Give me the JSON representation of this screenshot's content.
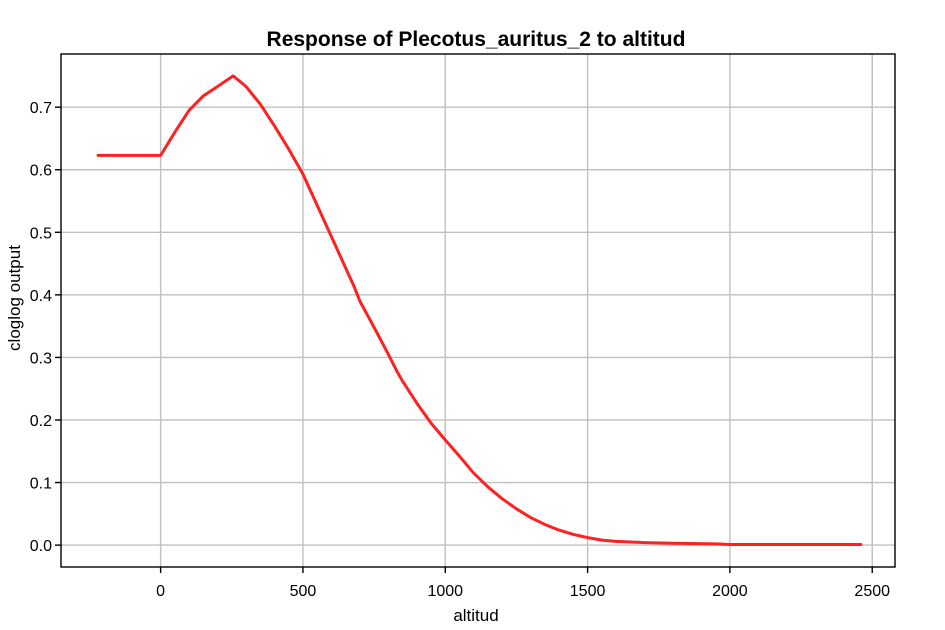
{
  "chart_data": {
    "type": "line",
    "title": "Response of Plecotus_auritus_2 to altitud",
    "xlabel": "altitud",
    "ylabel": "cloglog output",
    "xlim": [
      -350,
      2580
    ],
    "ylim": [
      -0.035,
      0.785
    ],
    "xticks": [
      0,
      500,
      1000,
      1500,
      2000,
      2500
    ],
    "yticks": [
      0.0,
      0.1,
      0.2,
      0.3,
      0.4,
      0.5,
      0.6,
      0.7
    ],
    "xtick_labels": [
      "0",
      "500",
      "1000",
      "1500",
      "2000",
      "2500"
    ],
    "ytick_labels": [
      "0.0",
      "0.1",
      "0.2",
      "0.3",
      "0.4",
      "0.5",
      "0.6",
      "0.7"
    ],
    "grid": true,
    "series": [
      {
        "color": "#ff2020",
        "x": [
          -220,
          -150,
          -50,
          0,
          50,
          100,
          150,
          200,
          255,
          300,
          350,
          400,
          450,
          500,
          550,
          600,
          650,
          680,
          700,
          750,
          800,
          830,
          850,
          900,
          950,
          1000,
          1050,
          1100,
          1150,
          1200,
          1250,
          1300,
          1350,
          1400,
          1450,
          1500,
          1550,
          1600,
          1700,
          1800,
          1950,
          2000,
          2100,
          2200,
          2300,
          2400,
          2460
        ],
        "y": [
          0.623,
          0.623,
          0.623,
          0.623,
          0.66,
          0.695,
          0.718,
          0.733,
          0.75,
          0.733,
          0.705,
          0.67,
          0.633,
          0.593,
          0.543,
          0.493,
          0.443,
          0.413,
          0.39,
          0.348,
          0.305,
          0.278,
          0.262,
          0.227,
          0.195,
          0.168,
          0.142,
          0.115,
          0.093,
          0.074,
          0.058,
          0.044,
          0.033,
          0.024,
          0.017,
          0.012,
          0.008,
          0.006,
          0.004,
          0.003,
          0.002,
          0.001,
          0.001,
          0.001,
          0.001,
          0.001,
          0.001
        ]
      }
    ]
  }
}
